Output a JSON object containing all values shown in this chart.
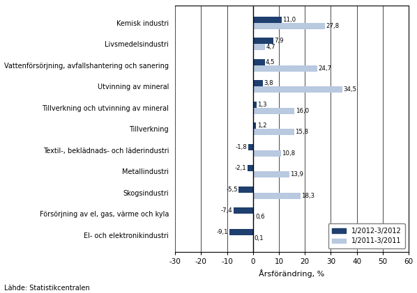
{
  "categories": [
    "El- och elektronikindustri",
    "Försörjning av el, gas, värme och kyla",
    "Skogsindustri",
    "Metallindustri",
    "Textil-, beklädnads- och läderindustri",
    "Tillverkning",
    "Tillverkning och utvinning av mineral",
    "Utvinning av mineral",
    "Vattenförsörjning, avfallshantering och sanering",
    "Livsmedelsindustri",
    "Kemisk industri"
  ],
  "series_2012": [
    -9.1,
    -7.4,
    -5.5,
    -2.1,
    -1.8,
    1.2,
    1.3,
    3.8,
    4.5,
    7.9,
    11.0
  ],
  "series_2011": [
    0.1,
    0.6,
    18.3,
    13.9,
    10.8,
    15.8,
    16.0,
    34.5,
    24.7,
    4.7,
    27.8
  ],
  "color_2012": "#1F3F6E",
  "color_2011": "#B8C9E0",
  "xlim": [
    -30,
    60
  ],
  "xticks": [
    -30,
    -20,
    -10,
    0,
    10,
    20,
    30,
    40,
    50,
    60
  ],
  "xlabel": "Årsförändring, %",
  "legend_2012": "1/2012-3/2012",
  "legend_2011": "1/2011-3/2011",
  "source": "Lähde: Statistikcentralen",
  "bar_height": 0.3
}
